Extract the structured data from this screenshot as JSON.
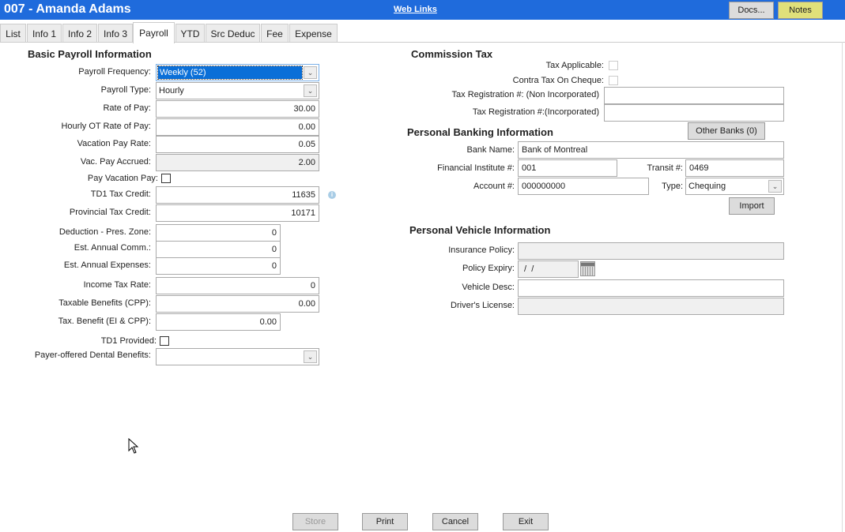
{
  "header": {
    "title": "007 - Amanda Adams",
    "web_links": "Web Links",
    "docs": "Docs...",
    "notes": "Notes",
    "notes_color": "#e0e07a",
    "bar_color": "#1f6bdc"
  },
  "tabs": [
    "List",
    "Info 1",
    "Info 2",
    "Info 3",
    "Payroll",
    "YTD",
    "Src Deduc",
    "Fee",
    "Expense"
  ],
  "active_tab": "Payroll",
  "basic": {
    "heading": "Basic Payroll Information",
    "payroll_frequency": {
      "label": "Payroll Frequency:",
      "value": "Weekly (52)"
    },
    "payroll_type": {
      "label": "Payroll Type:",
      "value": "Hourly"
    },
    "rate_of_pay": {
      "label": "Rate of Pay:",
      "value": "30.00"
    },
    "hourly_ot": {
      "label": "Hourly OT Rate of Pay:",
      "value": "0.00"
    },
    "vacation_rate": {
      "label": "Vacation Pay Rate:",
      "value": "0.05"
    },
    "vac_accrued": {
      "label": "Vac. Pay Accrued:",
      "value": "2.00"
    },
    "pay_vacation": {
      "label": "Pay Vacation Pay:",
      "checked": false
    },
    "td1": {
      "label": "TD1 Tax Credit:",
      "value": "11635"
    },
    "provincial": {
      "label": "Provincial Tax Credit:",
      "value": "10171"
    },
    "pres_zone": {
      "label": "Deduction - Pres. Zone:",
      "value": "0"
    },
    "annual_comm": {
      "label": "Est. Annual Comm.:",
      "value": "0"
    },
    "annual_exp": {
      "label": "Est. Annual Expenses:",
      "value": "0"
    },
    "income_tax": {
      "label": "Income Tax Rate:",
      "value": "0"
    },
    "taxable_cpp": {
      "label": "Taxable Benefits (CPP):",
      "value": "0.00"
    },
    "tax_ei_cpp": {
      "label": "Tax. Benefit (EI & CPP):",
      "value": "0.00"
    },
    "td1_provided": {
      "label": "TD1 Provided:",
      "checked": false
    },
    "dental": {
      "label": "Payer-offered Dental Benefits:",
      "value": ""
    }
  },
  "commission": {
    "heading": "Commission Tax",
    "tax_applicable": {
      "label": "Tax Applicable:",
      "checked": false
    },
    "contra": {
      "label": "Contra Tax On Cheque:",
      "checked": false
    },
    "reg_non": {
      "label": "Tax Registration #: (Non Incorporated)",
      "value": ""
    },
    "reg_inc": {
      "label": "Tax Registration #:(Incorporated)",
      "value": ""
    }
  },
  "banking": {
    "heading": "Personal Banking Information",
    "other_banks": "Other Banks (0)",
    "bank_name": {
      "label": "Bank Name:",
      "value": "Bank of Montreal"
    },
    "institute": {
      "label": "Financial Institute #:",
      "value": "001"
    },
    "transit": {
      "label": "Transit #:",
      "value": "0469"
    },
    "account": {
      "label": "Account #:",
      "value": "000000000"
    },
    "type": {
      "label": "Type:",
      "value": "Chequing"
    },
    "import": "Import"
  },
  "vehicle": {
    "heading": "Personal Vehicle Information",
    "insurance": {
      "label": "Insurance Policy:",
      "value": ""
    },
    "expiry": {
      "label": "Policy Expiry:",
      "value": " /  /"
    },
    "desc": {
      "label": "Vehicle Desc:",
      "value": ""
    },
    "license": {
      "label": "Driver's License:",
      "value": ""
    }
  },
  "footer": {
    "store": "Store",
    "print": "Print",
    "cancel": "Cancel",
    "exit": "Exit"
  }
}
